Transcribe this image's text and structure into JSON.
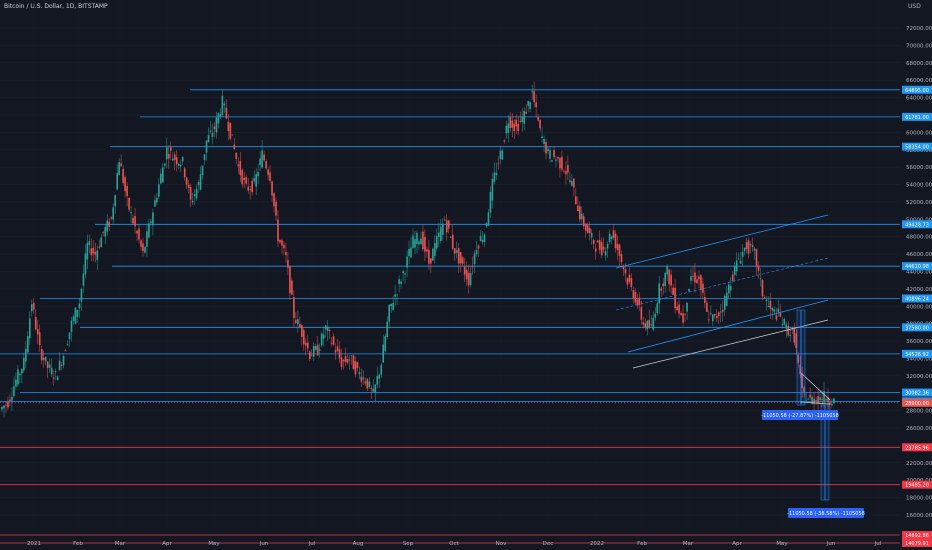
{
  "header": {
    "symbol_title": "Bitcoin / U.S. Dollar, 1D, BITSTAMP",
    "currency": "USD"
  },
  "colors": {
    "bg": "#131722",
    "up": "#26a69a",
    "down": "#ef5350",
    "hline": "#2196f3",
    "redline": "#f23645",
    "grid": "#1e2230",
    "axis_text": "#b2b5be",
    "label_blue": "#2962ff"
  },
  "chart_data": {
    "type": "candlestick",
    "title": "Bitcoin / U.S. Dollar, 1D, BITSTAMP",
    "ylabel": "USD",
    "ylim": [
      14000,
      74000
    ],
    "y_ticks": [
      "72000.00",
      "70000.00",
      "68000.00",
      "66000.00",
      "64000.00",
      "62000.00",
      "60000.00",
      "58000.00",
      "56000.00",
      "54000.00",
      "52000.00",
      "50000.00",
      "48000.00",
      "46000.00",
      "44000.00",
      "42000.00",
      "40000.00",
      "38000.00",
      "36000.00",
      "34000.00",
      "32000.00",
      "30000.00",
      "28000.00",
      "26000.00",
      "24000.00",
      "22000.00",
      "20000.00",
      "18000.00",
      "16000.00"
    ],
    "x_ticks": [
      "2021",
      "Feb",
      "Mar",
      "Apr",
      "May",
      "Jun",
      "Jul",
      "Aug",
      "Sep",
      "Oct",
      "Nov",
      "Dec",
      "2022",
      "Feb",
      "Mar",
      "Apr",
      "May",
      "Jun",
      "Jul"
    ],
    "support_resistance_blue": [
      {
        "value": 64895,
        "label": "64895.00"
      },
      {
        "value": 61781,
        "label": "61781.00"
      },
      {
        "value": 58354,
        "label": "58354.00"
      },
      {
        "value": 49428.73,
        "label": "49428.73"
      },
      {
        "value": 44610.98,
        "label": "44610.98"
      },
      {
        "value": 40896.24,
        "label": "40896.24"
      },
      {
        "value": 37580,
        "label": "37580.00"
      },
      {
        "value": 34526.92,
        "label": "34526.92"
      },
      {
        "value": 30082.36,
        "label": "30082.36"
      },
      {
        "value": 29069.76,
        "label": "29069.76"
      }
    ],
    "support_red": [
      {
        "value": 23785.96,
        "label": "23785.96"
      },
      {
        "value": 19485.2,
        "label": "19485.20"
      },
      {
        "value": 14892.86,
        "label": "14892.86"
      },
      {
        "value": 14079.91,
        "label": "14079.91"
      }
    ],
    "current_price": {
      "value": 28900,
      "label": "28900.00"
    },
    "measure_labels": [
      "-11050.58 (-27.87%) -1105058",
      "-11050.58 (-38.58%) -1105058"
    ],
    "series": [
      {
        "name": "close",
        "values": [
          29000,
          31500,
          33500,
          40500,
          35000,
          33000,
          32000,
          34500,
          38000,
          40500,
          47000,
          46000,
          48500,
          50000,
          57000,
          52000,
          49000,
          46000,
          50000,
          54000,
          58000,
          57000,
          56500,
          52000,
          54000,
          59000,
          60500,
          63500,
          60000,
          56000,
          53500,
          54000,
          57500,
          55000,
          48000,
          45500,
          39000,
          37000,
          34500,
          35000,
          37500,
          35500,
          33500,
          34000,
          32500,
          31500,
          29800,
          33500,
          39500,
          42000,
          44500,
          47500,
          48000,
          45000,
          47500,
          50000,
          47000,
          45000,
          43000,
          47000,
          48500,
          54000,
          57500,
          61500,
          60500,
          62000,
          64500,
          60000,
          57500,
          57000,
          56000,
          54000,
          50500,
          48500,
          47000,
          46500,
          48500,
          46000,
          43000,
          41000,
          38000,
          37500,
          42000,
          44000,
          40500,
          38500,
          43500,
          43000,
          39000,
          38500,
          40000,
          43000,
          45500,
          47000,
          46000,
          41500,
          39500,
          39000,
          37500,
          36500,
          30000,
          29200,
          29500,
          29600,
          29100
        ]
      }
    ]
  }
}
